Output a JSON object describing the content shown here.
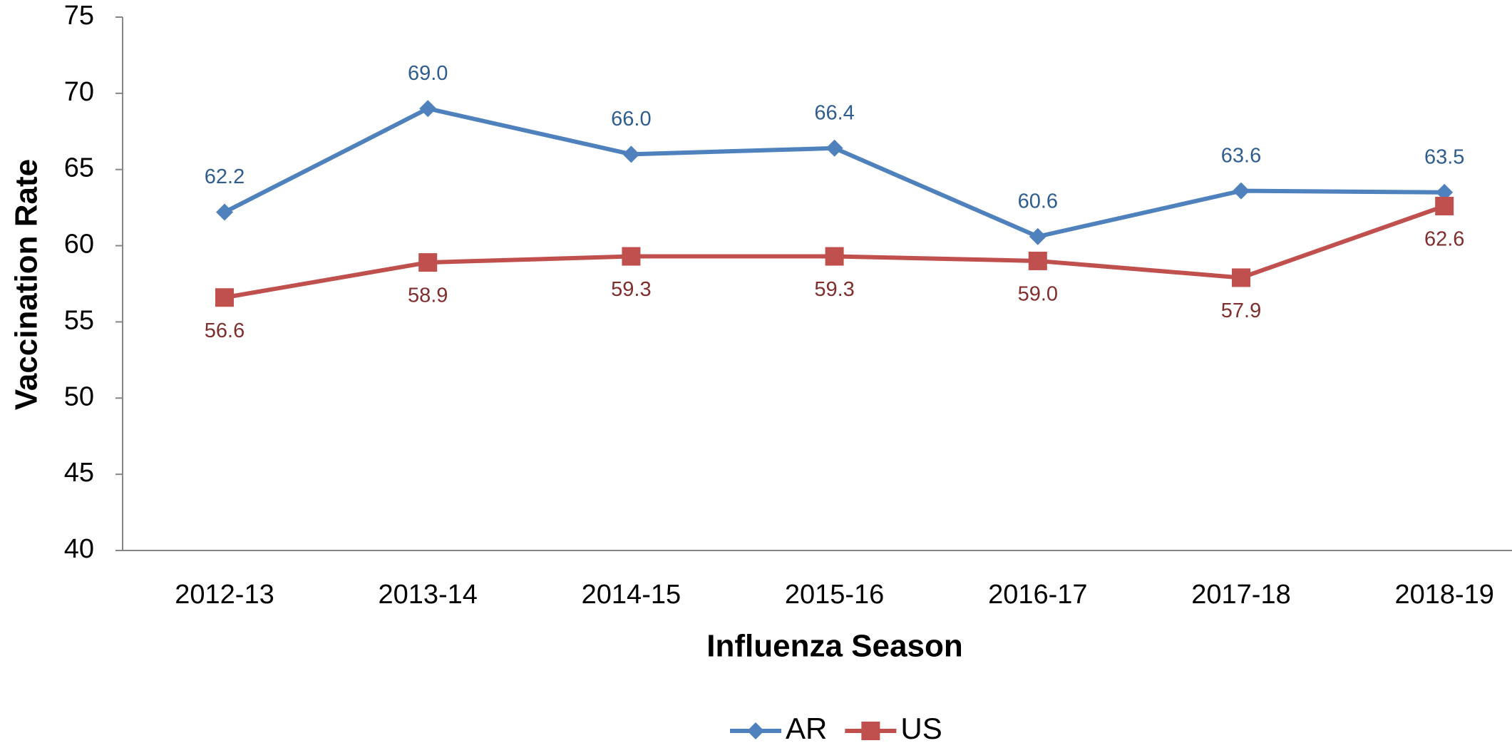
{
  "chart_data": {
    "type": "line",
    "x_label": "Influenza Season",
    "y_label": "Vaccination Rate",
    "categories": [
      "2012-13",
      "2013-14",
      "2014-15",
      "2015-16",
      "2016-17",
      "2017-18",
      "2018-19"
    ],
    "series": [
      {
        "name": "AR",
        "color": "#4f81bd",
        "marker": "diamond",
        "label_position": "above",
        "values": [
          62.2,
          69.0,
          66.0,
          66.4,
          60.6,
          63.6,
          63.5
        ],
        "value_labels": [
          "62.2",
          "69.0",
          "66.0",
          "66.4",
          "60.6",
          "63.6",
          "63.5"
        ]
      },
      {
        "name": "US",
        "color": "#c0504d",
        "marker": "square",
        "label_position": "below",
        "values": [
          56.6,
          58.9,
          59.3,
          59.3,
          59.0,
          57.9,
          62.6
        ],
        "value_labels": [
          "56.6",
          "58.9",
          "59.3",
          "59.3",
          "59.0",
          "57.9",
          "62.6"
        ]
      }
    ],
    "ylim": [
      40,
      75
    ],
    "yticks": [
      40,
      45,
      50,
      55,
      60,
      65,
      70,
      75
    ],
    "grid": false,
    "legend": "bottom"
  }
}
